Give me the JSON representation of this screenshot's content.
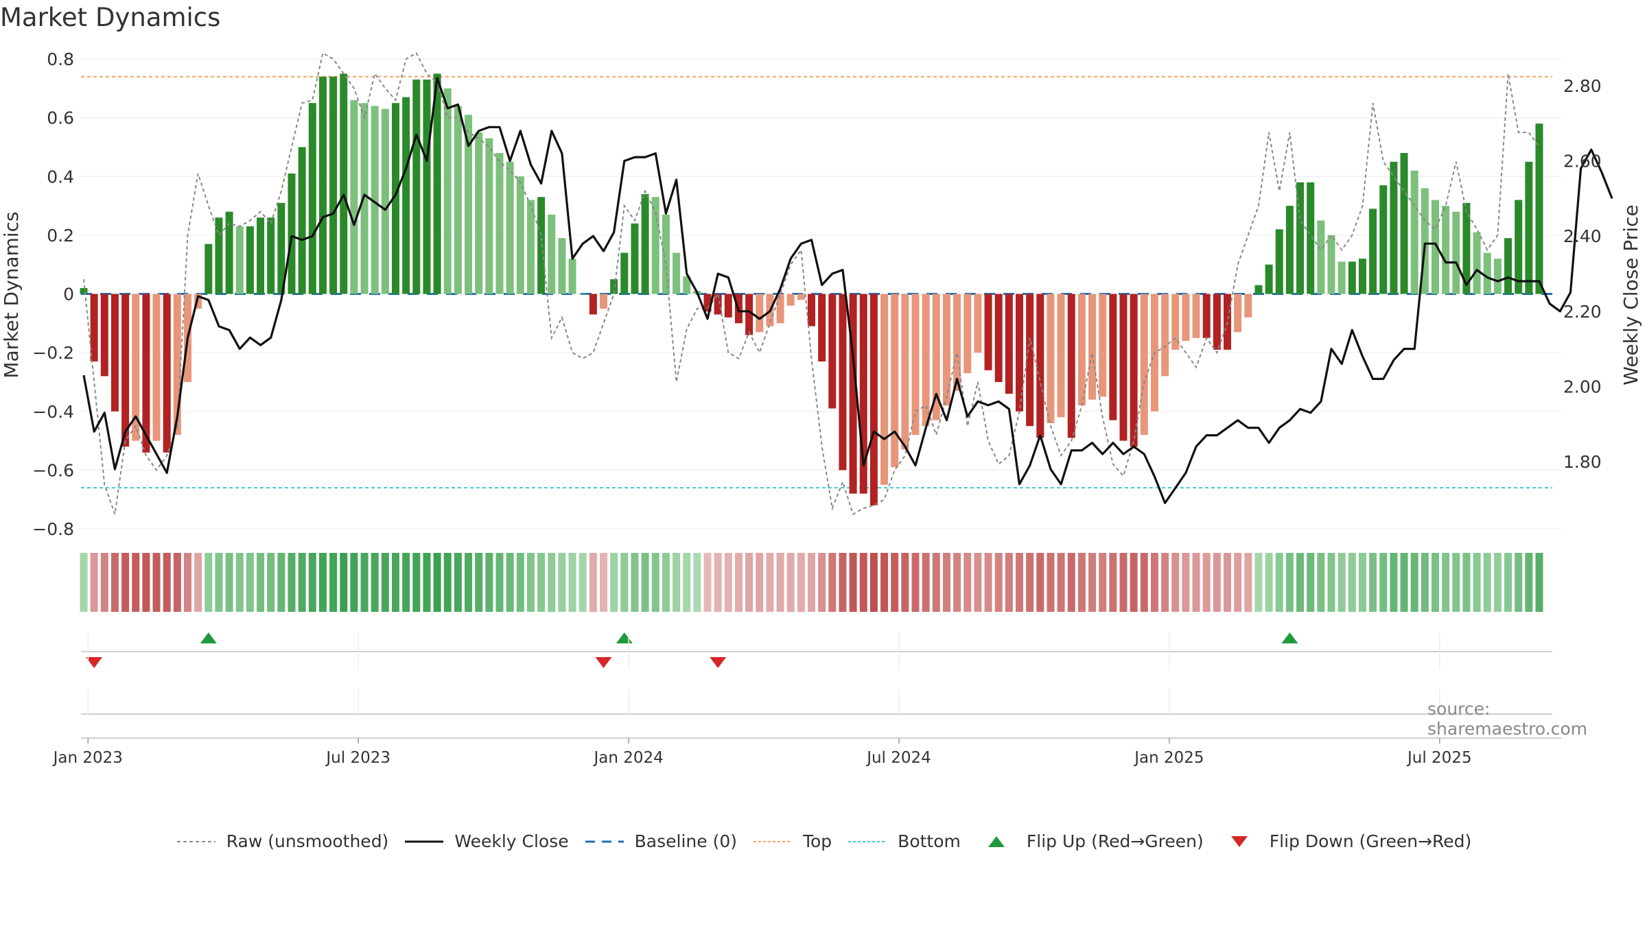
{
  "title": "Market Dynamics",
  "source": "source: sharemaestro.com",
  "colors": {
    "green_strong": "#2a8a2a",
    "green_light": "#7cc07c",
    "red_strong": "#b22222",
    "red_light": "#e8967a",
    "raw": "#888888",
    "close": "#111111",
    "baseline": "#1f6fb4",
    "top": "#f4a261",
    "bottom": "#3cc7d0",
    "flip_up": "#1e9a3c",
    "flip_down": "#d62728"
  },
  "legend": [
    {
      "key": "raw",
      "label": "Raw (unsmoothed)",
      "icon": "dashed-gray-line"
    },
    {
      "key": "close",
      "label": "Weekly Close",
      "icon": "solid-black-line"
    },
    {
      "key": "baseline",
      "label": "Baseline (0)",
      "icon": "dashed-blue-line"
    },
    {
      "key": "top",
      "label": "Top",
      "icon": "dotted-orange-line"
    },
    {
      "key": "bottom",
      "label": "Bottom",
      "icon": "dotted-cyan-line"
    },
    {
      "key": "flip_up",
      "label": "Flip Up (Red→Green)",
      "icon": "triangle-up-icon"
    },
    {
      "key": "flip_down",
      "label": "Flip Down (Green→Red)",
      "icon": "triangle-down-icon"
    }
  ],
  "chart_data": {
    "type": "bar",
    "ylabel_left": "Market Dynamics",
    "ylabel_right": "Weekly Close Price",
    "ylim_left": [
      -0.8,
      0.8
    ],
    "ylim_right": [
      1.6,
      2.85
    ],
    "yticks_left": [
      "0.8",
      "0.6",
      "0.4",
      "0.2",
      "0",
      "−0.2",
      "−0.4",
      "−0.6",
      "−0.8"
    ],
    "yticks_left_values": [
      0.8,
      0.6,
      0.4,
      0.2,
      0,
      -0.2,
      -0.4,
      -0.6,
      -0.8
    ],
    "yticks_right": [
      "2.80",
      "2.60",
      "2.40",
      "2.20",
      "2.00",
      "1.80"
    ],
    "yticks_right_values": [
      2.8,
      2.6,
      2.4,
      2.2,
      2.0,
      1.8
    ],
    "x_tick_labels": [
      "Jan 2023",
      "Jul 2023",
      "Jan 2024",
      "Jul 2024",
      "Jan 2025",
      "Jul 2025"
    ],
    "x_tick_week_index": [
      2,
      28,
      54,
      80,
      106,
      132
    ],
    "top_level": 0.74,
    "bottom_level": -0.66,
    "baseline": 0,
    "bars": [
      0.02,
      -0.23,
      -0.28,
      -0.4,
      -0.52,
      -0.5,
      -0.54,
      -0.5,
      -0.54,
      -0.48,
      -0.3,
      -0.05,
      0.17,
      0.26,
      0.28,
      0.23,
      0.23,
      0.26,
      0.26,
      0.31,
      0.41,
      0.5,
      0.65,
      0.74,
      0.74,
      0.75,
      0.66,
      0.65,
      0.64,
      0.63,
      0.65,
      0.67,
      0.73,
      0.73,
      0.75,
      0.7,
      0.64,
      0.61,
      0.55,
      0.53,
      0.48,
      0.45,
      0.4,
      0.32,
      0.33,
      0.27,
      0.19,
      0.12,
      0,
      -0.07,
      -0.05,
      0.05,
      0.14,
      0.24,
      0.34,
      0.33,
      0.27,
      0.14,
      0.06,
      0.01,
      -0.06,
      -0.07,
      -0.08,
      -0.1,
      -0.14,
      -0.13,
      -0.11,
      -0.1,
      -0.04,
      -0.02,
      -0.11,
      -0.23,
      -0.39,
      -0.6,
      -0.68,
      -0.68,
      -0.72,
      -0.65,
      -0.59,
      -0.53,
      -0.48,
      -0.45,
      -0.43,
      -0.38,
      -0.33,
      -0.27,
      -0.2,
      -0.26,
      -0.3,
      -0.34,
      -0.4,
      -0.45,
      -0.49,
      -0.44,
      -0.42,
      -0.49,
      -0.38,
      -0.36,
      -0.35,
      -0.43,
      -0.5,
      -0.52,
      -0.48,
      -0.4,
      -0.28,
      -0.19,
      -0.16,
      -0.15,
      -0.15,
      -0.19,
      -0.19,
      -0.13,
      -0.08,
      0.03,
      0.1,
      0.22,
      0.3,
      0.38,
      0.38,
      0.25,
      0.2,
      0.11,
      0.11,
      0.12,
      0.29,
      0.37,
      0.45,
      0.48,
      0.42,
      0.36,
      0.32,
      0.3,
      0.28,
      0.31,
      0.21,
      0.14,
      0.12,
      0.19,
      0.32,
      0.45,
      0.58
    ],
    "raw": [
      0.05,
      -0.3,
      -0.65,
      -0.75,
      -0.5,
      -0.45,
      -0.55,
      -0.6,
      -0.55,
      -0.45,
      0.2,
      0.41,
      0.3,
      0.2,
      0.24,
      0.23,
      0.25,
      0.28,
      0.24,
      0.35,
      0.5,
      0.65,
      0.66,
      0.82,
      0.8,
      0.75,
      0.7,
      0.6,
      0.75,
      0.7,
      0.66,
      0.8,
      0.82,
      0.75,
      0.72,
      0.6,
      0.6,
      0.55,
      0.53,
      0.5,
      0.45,
      0.42,
      0.38,
      0.3,
      0.2,
      -0.15,
      -0.08,
      -0.2,
      -0.22,
      -0.2,
      -0.1,
      0.0,
      0.3,
      0.25,
      0.35,
      0.28,
      0.1,
      -0.3,
      -0.12,
      -0.05,
      -0.05,
      0.0,
      -0.2,
      -0.22,
      -0.13,
      -0.2,
      -0.1,
      0.0,
      0.1,
      0.15,
      -0.22,
      -0.52,
      -0.73,
      -0.64,
      -0.75,
      -0.73,
      -0.72,
      -0.7,
      -0.6,
      -0.55,
      -0.4,
      -0.38,
      -0.48,
      -0.35,
      -0.2,
      -0.45,
      -0.3,
      -0.5,
      -0.58,
      -0.55,
      -0.4,
      -0.15,
      -0.3,
      -0.45,
      -0.55,
      -0.5,
      -0.38,
      -0.2,
      -0.42,
      -0.58,
      -0.62,
      -0.5,
      -0.3,
      -0.2,
      -0.18,
      -0.15,
      -0.2,
      -0.25,
      -0.15,
      -0.2,
      -0.1,
      0.1,
      0.2,
      0.3,
      0.55,
      0.35,
      0.55,
      0.25,
      0.2,
      0.15,
      0.2,
      0.15,
      0.2,
      0.3,
      0.65,
      0.45,
      0.4,
      0.35,
      0.3,
      0.25,
      0.22,
      0.3,
      0.45,
      0.28,
      0.22,
      0.15,
      0.2,
      0.75,
      0.55,
      0.55,
      0.5
    ],
    "close": [
      2.03,
      1.88,
      1.93,
      1.78,
      1.88,
      1.92,
      1.87,
      1.82,
      1.77,
      1.92,
      2.13,
      2.24,
      2.23,
      2.16,
      2.15,
      2.1,
      2.13,
      2.11,
      2.13,
      2.23,
      2.4,
      2.39,
      2.4,
      2.45,
      2.46,
      2.51,
      2.43,
      2.51,
      2.49,
      2.47,
      2.51,
      2.58,
      2.67,
      2.6,
      2.82,
      2.74,
      2.75,
      2.64,
      2.68,
      2.69,
      2.69,
      2.6,
      2.68,
      2.59,
      2.54,
      2.68,
      2.62,
      2.34,
      2.38,
      2.4,
      2.36,
      2.41,
      2.6,
      2.61,
      2.61,
      2.62,
      2.46,
      2.55,
      2.3,
      2.25,
      2.18,
      2.3,
      2.29,
      2.2,
      2.2,
      2.18,
      2.2,
      2.26,
      2.34,
      2.38,
      2.39,
      2.27,
      2.3,
      2.31,
      2.08,
      1.79,
      1.88,
      1.86,
      1.88,
      1.84,
      1.79,
      1.89,
      1.98,
      1.91,
      2.02,
      1.92,
      1.96,
      1.95,
      1.96,
      1.94,
      1.74,
      1.79,
      1.87,
      1.78,
      1.74,
      1.83,
      1.83,
      1.85,
      1.82,
      1.85,
      1.82,
      1.84,
      1.82,
      1.76,
      1.69,
      1.73,
      1.77,
      1.84,
      1.87,
      1.87,
      1.89,
      1.91,
      1.89,
      1.89,
      1.85,
      1.89,
      1.91,
      1.94,
      1.93,
      1.96,
      2.1,
      2.06,
      2.15,
      2.08,
      2.02,
      2.02,
      2.07,
      2.1,
      2.1,
      2.38,
      2.38,
      2.33,
      2.33,
      2.27,
      2.31,
      2.29,
      2.28,
      2.29,
      2.28,
      2.28,
      2.28,
      2.22,
      2.2,
      2.25,
      2.58,
      2.63,
      2.57,
      2.5
    ],
    "heat_strip": [
      0.25,
      0.45,
      0.6,
      0.8,
      0.9,
      0.9,
      0.92,
      0.9,
      0.9,
      0.85,
      0.6,
      0.35,
      0.4,
      0.5,
      0.55,
      0.5,
      0.5,
      0.6,
      0.6,
      0.7,
      0.8,
      0.85,
      0.9,
      0.95,
      0.95,
      1.0,
      0.95,
      0.9,
      0.9,
      0.9,
      0.9,
      0.92,
      0.95,
      0.95,
      1.0,
      0.95,
      0.9,
      0.85,
      0.8,
      0.75,
      0.7,
      0.65,
      0.6,
      0.5,
      0.45,
      0.4,
      0.35,
      0.3,
      0.25,
      0.3,
      0.25,
      0.3,
      0.4,
      0.5,
      0.55,
      0.5,
      0.4,
      0.3,
      0.25,
      0.2,
      0.2,
      0.25,
      0.25,
      0.3,
      0.35,
      0.35,
      0.3,
      0.3,
      0.3,
      0.3,
      0.35,
      0.5,
      0.7,
      0.85,
      0.95,
      0.95,
      1.0,
      0.95,
      0.9,
      0.85,
      0.8,
      0.75,
      0.7,
      0.65,
      0.6,
      0.55,
      0.5,
      0.55,
      0.6,
      0.65,
      0.7,
      0.75,
      0.8,
      0.75,
      0.72,
      0.8,
      0.7,
      0.65,
      0.65,
      0.75,
      0.8,
      0.85,
      0.8,
      0.7,
      0.6,
      0.5,
      0.45,
      0.45,
      0.42,
      0.45,
      0.45,
      0.4,
      0.35,
      0.25,
      0.3,
      0.45,
      0.55,
      0.65,
      0.65,
      0.55,
      0.5,
      0.4,
      0.4,
      0.42,
      0.55,
      0.6,
      0.7,
      0.72,
      0.68,
      0.62,
      0.55,
      0.5,
      0.5,
      0.55,
      0.45,
      0.4,
      0.38,
      0.45,
      0.6,
      0.7,
      0.8
    ],
    "flip_up_week": [
      12,
      52,
      116
    ],
    "flip_down_week": [
      1,
      50,
      61
    ]
  }
}
